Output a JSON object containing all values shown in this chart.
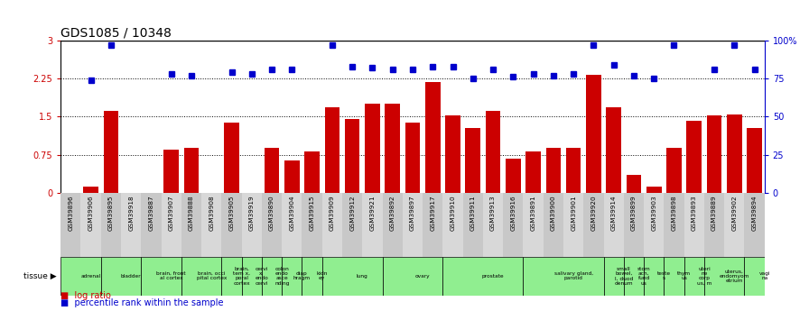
{
  "title": "GDS1085 / 10348",
  "gsm_labels": [
    "GSM39896",
    "GSM39906",
    "GSM39895",
    "GSM39918",
    "GSM39887",
    "GSM39907",
    "GSM39888",
    "GSM39908",
    "GSM39905",
    "GSM39919",
    "GSM39890",
    "GSM39904",
    "GSM39915",
    "GSM39909",
    "GSM39912",
    "GSM39921",
    "GSM39892",
    "GSM39897",
    "GSM39917",
    "GSM39910",
    "GSM39911",
    "GSM39913",
    "GSM39916",
    "GSM39891",
    "GSM39900",
    "GSM39901",
    "GSM39920",
    "GSM39914",
    "GSM39899",
    "GSM39903",
    "GSM39898",
    "GSM39893",
    "GSM39889",
    "GSM39902",
    "GSM39894"
  ],
  "log_ratio": [
    0.0,
    0.13,
    1.62,
    0.0,
    0.0,
    0.85,
    0.88,
    0.0,
    1.38,
    0.0,
    0.88,
    0.63,
    0.82,
    1.68,
    1.45,
    1.75,
    1.75,
    1.38,
    2.18,
    1.52,
    1.28,
    1.62,
    0.68,
    0.82,
    0.88,
    0.88,
    2.32,
    1.68,
    0.35,
    0.12,
    0.88,
    1.42,
    1.52,
    1.55,
    1.28
  ],
  "percentile_rank": [
    0,
    74,
    97,
    0,
    0,
    78,
    77,
    0,
    79,
    78,
    81,
    81,
    0,
    97,
    83,
    82,
    81,
    81,
    83,
    83,
    75,
    81,
    76,
    78,
    77,
    78,
    97,
    84,
    77,
    75,
    97,
    0,
    81,
    97,
    81
  ],
  "tissue_groups": [
    {
      "label": "adrenal",
      "start": 0,
      "end": 2
    },
    {
      "label": "bladder",
      "start": 2,
      "end": 4
    },
    {
      "label": "brain, front\nal cortex",
      "start": 4,
      "end": 6
    },
    {
      "label": "brain, occi\npital cortex",
      "start": 6,
      "end": 8
    },
    {
      "label": "brain,\ntem x,\nporal\ncortex",
      "start": 8,
      "end": 9
    },
    {
      "label": "cervi\nx,\nendo\ncervi",
      "start": 9,
      "end": 10
    },
    {
      "label": "colon\nendo\nasce\nnding",
      "start": 10,
      "end": 11
    },
    {
      "label": "diap\nhragm",
      "start": 11,
      "end": 12
    },
    {
      "label": "kidn\ney",
      "start": 12,
      "end": 13
    },
    {
      "label": "lung",
      "start": 13,
      "end": 16
    },
    {
      "label": "ovary",
      "start": 16,
      "end": 19
    },
    {
      "label": "prostate",
      "start": 19,
      "end": 23
    },
    {
      "label": "salivary gland,\nparotid",
      "start": 23,
      "end": 27
    },
    {
      "label": "small\nbowel,\nl, duod\ndenum",
      "start": 27,
      "end": 28
    },
    {
      "label": "stom\nach,\nfund\nus",
      "start": 28,
      "end": 29
    },
    {
      "label": "teste\ns",
      "start": 29,
      "end": 30
    },
    {
      "label": "thym\nus",
      "start": 30,
      "end": 31
    },
    {
      "label": "uteri\nne\ncorp\nus, m",
      "start": 31,
      "end": 32
    },
    {
      "label": "uterus,\nendomyom\netrium",
      "start": 32,
      "end": 34
    },
    {
      "label": "vagi\nna",
      "start": 34,
      "end": 35
    }
  ],
  "bar_color": "#cc0000",
  "dot_color": "#0000cc",
  "tissue_color": "#90ee90",
  "tissue_border_color": "#000000",
  "ylim_left": [
    0,
    3
  ],
  "ylim_right": [
    0,
    100
  ],
  "yticks_left": [
    0,
    0.75,
    1.5,
    2.25,
    3
  ],
  "yticks_right": [
    0,
    25,
    50,
    75,
    100
  ],
  "ytick_labels_left": [
    "0",
    "0.75",
    "1.5",
    "2.25",
    "3"
  ],
  "ytick_labels_right": [
    "0",
    "25",
    "50",
    "75",
    "100%"
  ],
  "hlines": [
    0.75,
    1.5,
    2.25
  ],
  "col_colors": [
    "#c8c8c8",
    "#d8d8d8"
  ],
  "title_fontsize": 10
}
